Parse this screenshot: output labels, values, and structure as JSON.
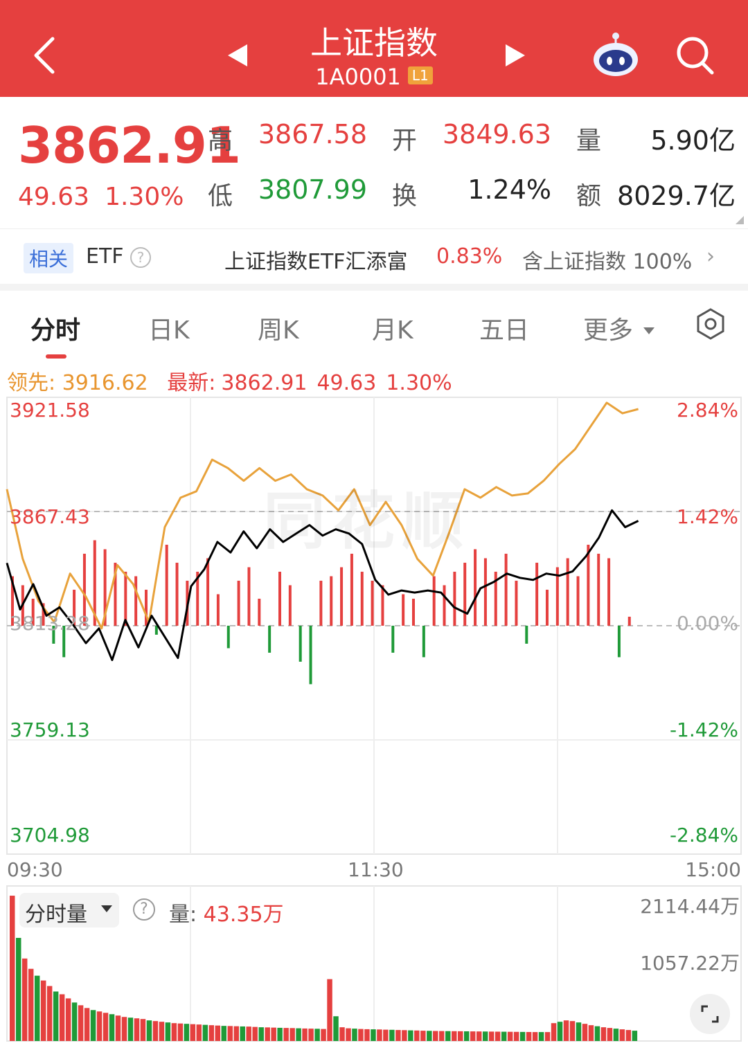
{
  "header": {
    "title": "上证指数",
    "code": "1A0001",
    "level": "L1"
  },
  "quote": {
    "price": "3862.91",
    "change": "49.63",
    "change_pct": "1.30%",
    "high_label": "高",
    "high": "3867.58",
    "low_label": "低",
    "low": "3807.99",
    "open_label": "开",
    "open": "3849.63",
    "turnover_label": "换",
    "turnover": "1.24%",
    "volume_label": "量",
    "volume": "5.90亿",
    "amount_label": "额",
    "amount": "8029.7亿"
  },
  "etf": {
    "tag": "相关",
    "label": "ETF",
    "fund": "上证指数ETF汇添富",
    "fund_pct": "0.83%",
    "contains": "含上证指数 100%"
  },
  "tabs": [
    "分时",
    "日K",
    "周K",
    "月K",
    "五日",
    "更多"
  ],
  "info": {
    "lead_label": "领先:",
    "lead": "3916.62",
    "latest_label": "最新:",
    "latest": "3862.91",
    "latest_chg": "49.63",
    "latest_pct": "1.30%"
  },
  "chart_data": {
    "type": "line",
    "y_ticks_left": [
      "3921.58",
      "3867.43",
      "3813.28",
      "3759.13",
      "3704.98"
    ],
    "y_ticks_right": [
      "2.84%",
      "1.42%",
      "0.00%",
      "-1.42%",
      "-2.84%"
    ],
    "x_ticks": [
      "09:30",
      "11:30",
      "15:00"
    ],
    "ylim": [
      3704.98,
      3921.58
    ],
    "prev_close": 3813.28,
    "series": [
      {
        "values": [
          3843,
          3821,
          3833,
          3818,
          3822,
          3814,
          3805,
          3812,
          3797,
          3816,
          3803,
          3818,
          3808,
          3798,
          3832,
          3840,
          3853,
          3848,
          3858,
          3850,
          3859,
          3853,
          3857,
          3861,
          3856,
          3859,
          3857,
          3852,
          3835,
          3828,
          3830,
          3829,
          3830,
          3829,
          3822,
          3819,
          3831,
          3834,
          3838,
          3836,
          3835,
          3838,
          3837,
          3839,
          3846,
          3855,
          3868,
          3860,
          3863
        ]
      },
      {
        "values": [
          3878,
          3845,
          3825,
          3815,
          3838,
          3827,
          3812,
          3842,
          3833,
          3815,
          3860,
          3874,
          3877,
          3892,
          3888,
          3882,
          3888,
          3882,
          3885,
          3878,
          3875,
          3868,
          3878,
          3861,
          3872,
          3861,
          3845,
          3837,
          3857,
          3878,
          3874,
          3879,
          3875,
          3876,
          3882,
          3890,
          3897,
          3908,
          3919,
          3914,
          3916
        ]
      },
      {
        "values": [
          0.55,
          0.45,
          0.3,
          0.25,
          -0.2,
          -0.35,
          0.4,
          0.8,
          0.95,
          0.85,
          0.7,
          0.6,
          0.55,
          0.4,
          -0.1,
          0.9,
          0.7,
          0.5,
          0.6,
          0.75,
          0.35,
          -0.25,
          0.5,
          0.65,
          0.3,
          -0.3,
          0.6,
          0.45,
          -0.4,
          -0.65,
          0.5,
          0.55,
          0.65,
          0.8,
          0.6,
          0.5,
          0.45,
          -0.3,
          0.35,
          0.3,
          -0.35,
          0.55,
          0.45,
          0.6,
          0.7,
          0.85,
          0.75,
          0.6,
          0.8,
          0.5,
          -0.2,
          0.7,
          0.4,
          0.65,
          0.75,
          0.55,
          0.9,
          0.8,
          0.75,
          -0.35,
          0.1
        ]
      }
    ],
    "volume_ticks": [
      "2114.44万",
      "1057.22万"
    ],
    "volume_current_label": "量:",
    "volume_current": "43.35万",
    "volume_mode": "分时量",
    "volume_values": [
      2114,
      1500,
      1200,
      1050,
      950,
      880,
      800,
      720,
      680,
      620,
      560,
      520,
      480,
      450,
      430,
      410,
      390,
      370,
      350,
      340,
      330,
      320,
      300,
      290,
      280,
      270,
      260,
      255,
      250,
      245,
      240,
      235,
      230,
      225,
      220,
      218,
      215,
      212,
      210,
      205,
      200,
      198,
      195,
      192,
      190,
      188,
      185,
      182,
      180,
      178,
      175,
      900,
      360,
      200,
      185,
      180,
      175,
      172,
      170,
      168,
      165,
      163,
      160,
      158,
      155,
      153,
      150,
      148,
      146,
      145,
      144,
      143,
      142,
      141,
      140,
      139,
      138,
      137,
      136,
      135,
      134,
      133,
      132,
      131,
      130,
      130,
      130,
      260,
      280,
      300,
      290,
      270,
      250,
      230,
      215,
      200,
      190,
      180,
      170,
      160,
      150
    ]
  },
  "colors": {
    "brand_red": "#e5403f",
    "up": "#e5403f",
    "down": "#1f9a38",
    "lead_line": "#e8a23b",
    "price_line": "#000000"
  }
}
